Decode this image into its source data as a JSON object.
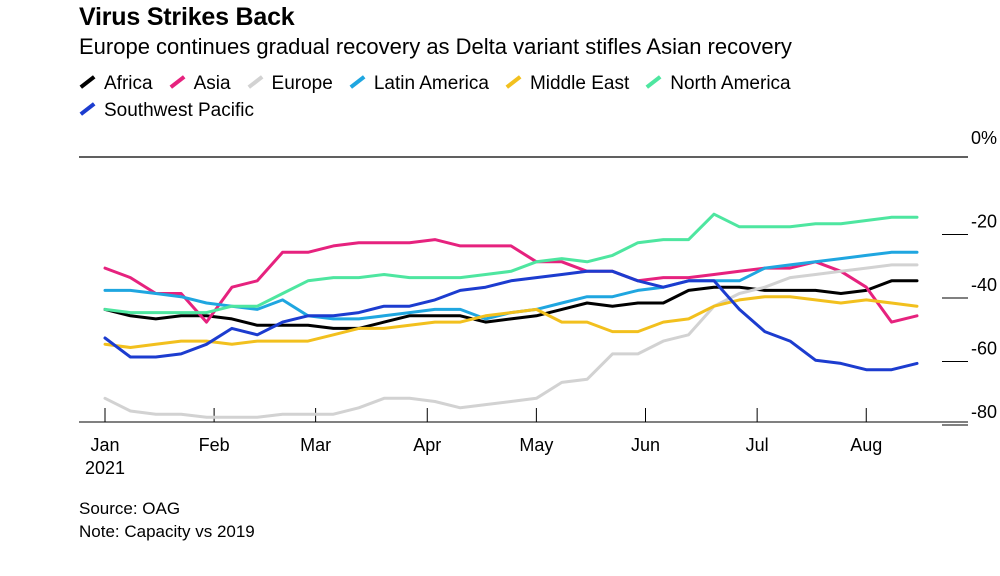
{
  "header": {
    "title": "Virus Strikes Back",
    "subtitle": "Europe continues gradual recovery as Delta variant stifles Asian recovery"
  },
  "footer": {
    "source": "Source: OAG",
    "note": "Note: Capacity vs 2019"
  },
  "chart_data": {
    "type": "line",
    "title": "Virus Strikes Back",
    "subtitle": "Europe continues gradual recovery as Delta variant stifles Asian recovery",
    "xlabel": "",
    "ylabel": "",
    "ylim": [
      -86,
      0
    ],
    "y_ticks": [
      0,
      -20,
      -40,
      -60,
      -80
    ],
    "y_tick_labels": [
      "0%",
      "-20",
      "-40",
      "-60",
      "-80"
    ],
    "x_ticks": [
      0,
      4.3,
      8.3,
      12.7,
      17,
      21.3,
      25.7,
      30
    ],
    "x_tick_labels": [
      "Jan",
      "Feb",
      "Mar",
      "Apr",
      "May",
      "Jun",
      "Jul",
      "Aug"
    ],
    "x_tick_sublabels": [
      "2021",
      "",
      "",
      "",
      "",
      "",
      "",
      ""
    ],
    "x": [
      0,
      1,
      2,
      3,
      4,
      5,
      6,
      7,
      8,
      9,
      10,
      11,
      12,
      13,
      14,
      15,
      16,
      17,
      18,
      19,
      20,
      21,
      22,
      23,
      24,
      25,
      26,
      27,
      28,
      29,
      30,
      31,
      32
    ],
    "legend_position": "top-left",
    "series": [
      {
        "name": "Africa",
        "color": "#000000",
        "values": [
          -48,
          -50,
          -51,
          -50,
          -50,
          -51,
          -53,
          -53,
          -53,
          -54,
          -54,
          -52,
          -50,
          -50,
          -50,
          -52,
          -51,
          -50,
          -48,
          -46,
          -47,
          -46,
          -46,
          -42,
          -41,
          -41,
          -42,
          -42,
          -42,
          -43,
          -42,
          -39,
          -39
        ]
      },
      {
        "name": "Asia",
        "color": "#e6227e",
        "values": [
          -35,
          -38,
          -43,
          -43,
          -52,
          -41,
          -39,
          -30,
          -30,
          -28,
          -27,
          -27,
          -27,
          -26,
          -28,
          -28,
          -28,
          -33,
          -33,
          -36,
          -36,
          -39,
          -38,
          -38,
          -37,
          -36,
          -35,
          -35,
          -33,
          -36,
          -41,
          -52,
          -50
        ]
      },
      {
        "name": "Europe",
        "color": "#d2d2d2",
        "values": [
          -76,
          -80,
          -81,
          -81,
          -82,
          -82,
          -82,
          -81,
          -81,
          -81,
          -79,
          -76,
          -76,
          -77,
          -79,
          -78,
          -77,
          -76,
          -71,
          -70,
          -62,
          -62,
          -58,
          -56,
          -47,
          -43,
          -41,
          -38,
          -37,
          -36,
          -35,
          -34,
          -34
        ]
      },
      {
        "name": "Latin America",
        "color": "#1fa6e0",
        "values": [
          -42,
          -42,
          -43,
          -44,
          -46,
          -47,
          -48,
          -45,
          -50,
          -51,
          -51,
          -50,
          -49,
          -48,
          -48,
          -51,
          -49,
          -48,
          -46,
          -44,
          -44,
          -42,
          -41,
          -39,
          -39,
          -39,
          -35,
          -34,
          -33,
          -32,
          -31,
          -30,
          -30
        ]
      },
      {
        "name": "Middle East",
        "color": "#f2c01e",
        "values": [
          -59,
          -60,
          -59,
          -58,
          -58,
          -59,
          -58,
          -58,
          -58,
          -56,
          -54,
          -54,
          -53,
          -52,
          -52,
          -50,
          -49,
          -48,
          -52,
          -52,
          -55,
          -55,
          -52,
          -51,
          -47,
          -45,
          -44,
          -44,
          -45,
          -46,
          -45,
          -46,
          -47
        ]
      },
      {
        "name": "North America",
        "color": "#4ee6a0",
        "values": [
          -48,
          -49,
          -49,
          -49,
          -49,
          -47,
          -47,
          -43,
          -39,
          -38,
          -38,
          -37,
          -38,
          -38,
          -38,
          -37,
          -36,
          -33,
          -32,
          -33,
          -31,
          -27,
          -26,
          -26,
          -18,
          -22,
          -22,
          -22,
          -21,
          -21,
          -20,
          -19,
          -19
        ]
      },
      {
        "name": "Southwest Pacific",
        "color": "#1c3ccf",
        "values": [
          -57,
          -63,
          -63,
          -62,
          -59,
          -54,
          -56,
          -52,
          -50,
          -50,
          -49,
          -47,
          -47,
          -45,
          -42,
          -41,
          -39,
          -38,
          -37,
          -36,
          -36,
          -39,
          -41,
          -39,
          -39,
          -48,
          -55,
          -58,
          -64,
          -65,
          -67,
          -67,
          -65
        ]
      }
    ]
  }
}
